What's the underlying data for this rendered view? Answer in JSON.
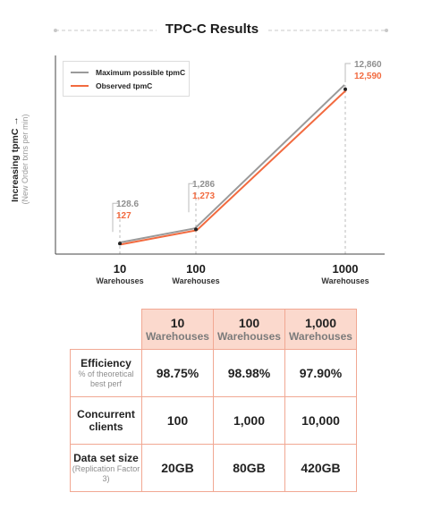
{
  "chart_data": {
    "type": "line",
    "title": "TPC-C Results",
    "ylabel": "Increasing tpmC",
    "ylabel_sub": "(New Order txns per min)",
    "x_scale": "log",
    "x": [
      10,
      100,
      1000
    ],
    "tick_labels": [
      "10",
      "100",
      "1000"
    ],
    "tick_sublabel": "Warehouses",
    "series": [
      {
        "name": "Maximum possible tpmC",
        "values": [
          128.6,
          1286,
          12860
        ],
        "labels": [
          "128.6",
          "1,286",
          "12,860"
        ],
        "color": "#9a9a9a"
      },
      {
        "name": "Observed tpmC",
        "values": [
          127,
          1273,
          12590
        ],
        "labels": [
          "127",
          "1,273",
          "12,590"
        ],
        "color": "#f26a3f"
      }
    ],
    "legend_position": "top-left",
    "grid": false
  },
  "table": {
    "columns": [
      {
        "num": "10",
        "unit": "Warehouses"
      },
      {
        "num": "100",
        "unit": "Warehouses"
      },
      {
        "num": "1,000",
        "unit": "Warehouses"
      }
    ],
    "rows": [
      {
        "label": "Efficiency",
        "sub": "% of theoretical best perf",
        "values": [
          "98.75%",
          "98.98%",
          "97.90%"
        ]
      },
      {
        "label": "Concurrent clients",
        "sub": "",
        "values": [
          "100",
          "1,000",
          "10,000"
        ]
      },
      {
        "label": "Data set size",
        "sub": "(Replication Factor 3)",
        "values": [
          "20GB",
          "80GB",
          "420GB"
        ]
      }
    ]
  }
}
